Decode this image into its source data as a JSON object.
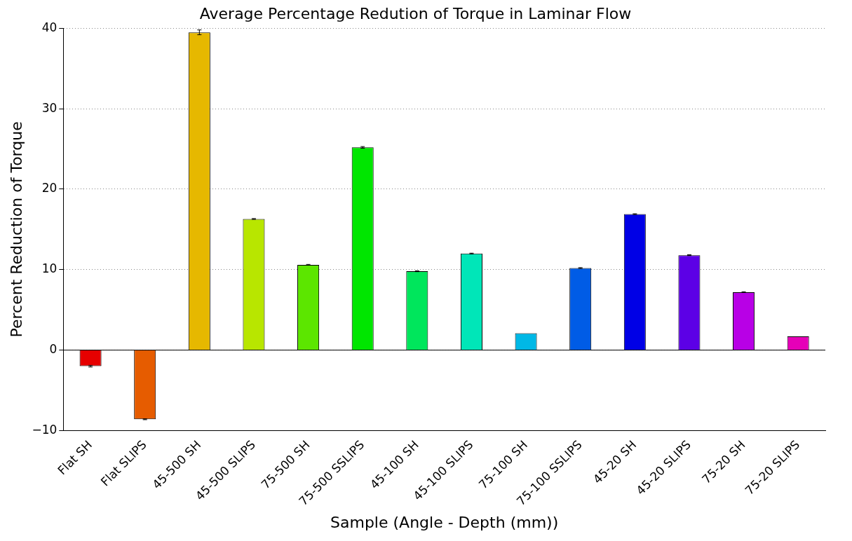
{
  "chart_data": {
    "type": "bar",
    "title": "Average Percentage Redution of Torque in Laminar Flow",
    "xlabel": "Sample (Angle - Depth (mm))",
    "ylabel": "Percent Reduction of Torque",
    "categories": [
      "Flat SH",
      "Flat SLIPS",
      "45-500 SH",
      "45-500 SLIPS",
      "75-500 SH",
      "75-500 SSLIPS",
      "45-100 SH",
      "45-100 SLIPS",
      "75-100 SH",
      "75-100 SSLIPS",
      "45-20 SH",
      "45-20 SLIPS",
      "75-20 SH",
      "75-20 SLIPS"
    ],
    "values": [
      -2.0,
      -8.6,
      39.5,
      16.3,
      10.6,
      25.2,
      9.8,
      12.0,
      2.1,
      10.2,
      16.9,
      11.8,
      7.2,
      1.7
    ],
    "errors": [
      0.1,
      0.05,
      0.3,
      0.05,
      0.05,
      0.1,
      0.05,
      0.05,
      null,
      0.05,
      0.05,
      0.05,
      0.05,
      null
    ],
    "colors": [
      "#e60000",
      "#e65c00",
      "#e6b800",
      "#b8e600",
      "#5ce600",
      "#00e600",
      "#00e65c",
      "#00e6b8",
      "#00b8e6",
      "#005ce6",
      "#0000e6",
      "#5c00e6",
      "#b800e6",
      "#e600b8"
    ],
    "ylim": [
      -10,
      40
    ],
    "yticks": [
      -10,
      0,
      10,
      20,
      30,
      40
    ],
    "grid": "y",
    "legend": false,
    "ref_lines": [
      {
        "axis": "y",
        "value": 0,
        "color": "#000000"
      }
    ]
  }
}
